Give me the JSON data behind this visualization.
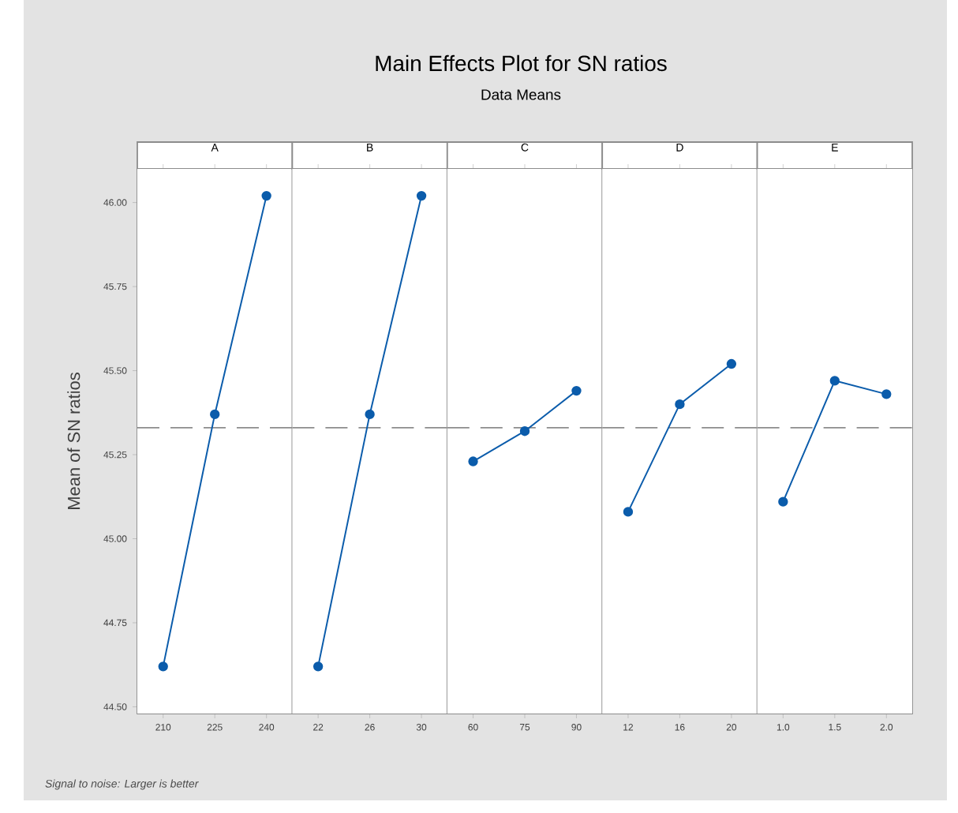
{
  "chart_data": [
    {
      "type": "other",
      "title": "Main Effects Plot for SN ratios",
      "subtitle": "Data Means",
      "annotations": [
        "Signal to noise: Larger is better"
      ]
    },
    {
      "type": "line",
      "title": "A",
      "ylabel": "Mean of SN ratios",
      "categories": [
        "210",
        "225",
        "240"
      ],
      "series": [
        {
          "color": "#0b5cab",
          "values": [
            44.62,
            45.37,
            46.02
          ]
        }
      ],
      "ylim": [
        44.48,
        46.1
      ],
      "yticks": [
        {
          "value": 44.5,
          "label": "44.50"
        },
        {
          "value": 44.75,
          "label": "44.75"
        },
        {
          "value": 45,
          "label": "45.00"
        },
        {
          "value": 45.25,
          "label": "45.25"
        },
        {
          "value": 45.5,
          "label": "45.50"
        },
        {
          "value": 45.75,
          "label": "45.75"
        },
        {
          "value": 46,
          "label": "46.00"
        }
      ],
      "ref_lines": [
        {
          "axis": "y",
          "value": 45.33,
          "color": "#8c8c8c",
          "line_style": "dashed"
        }
      ],
      "marker": "circle",
      "line_style": "solid"
    },
    {
      "type": "line",
      "title": "B",
      "categories": [
        "22",
        "26",
        "30"
      ],
      "series": [
        {
          "color": "#0b5cab",
          "values": [
            44.62,
            45.37,
            46.02
          ]
        }
      ],
      "ylim": [
        44.48,
        46.1
      ],
      "tick_labels": "x",
      "ref_lines": [
        {
          "axis": "y",
          "value": 45.33,
          "color": "#8c8c8c",
          "line_style": "dashed"
        }
      ],
      "marker": "circle",
      "line_style": "solid"
    },
    {
      "type": "line",
      "title": "C",
      "categories": [
        "60",
        "75",
        "90"
      ],
      "series": [
        {
          "color": "#0b5cab",
          "values": [
            45.23,
            45.32,
            45.44
          ]
        }
      ],
      "ylim": [
        44.48,
        46.1
      ],
      "tick_labels": "x",
      "ref_lines": [
        {
          "axis": "y",
          "value": 45.33,
          "color": "#8c8c8c",
          "line_style": "dashed"
        }
      ],
      "marker": "circle",
      "line_style": "solid"
    },
    {
      "type": "line",
      "title": "D",
      "categories": [
        "12",
        "16",
        "20"
      ],
      "series": [
        {
          "color": "#0b5cab",
          "values": [
            45.08,
            45.4,
            45.52
          ]
        }
      ],
      "ylim": [
        44.48,
        46.1
      ],
      "tick_labels": "x",
      "ref_lines": [
        {
          "axis": "y",
          "value": 45.33,
          "color": "#8c8c8c",
          "line_style": "dashed"
        }
      ],
      "marker": "circle",
      "line_style": "solid"
    },
    {
      "type": "line",
      "title": "E",
      "categories": [
        "1.0",
        "1.5",
        "2.0"
      ],
      "series": [
        {
          "color": "#0b5cab",
          "values": [
            45.11,
            45.47,
            45.43
          ]
        }
      ],
      "ylim": [
        44.48,
        46.1
      ],
      "tick_labels": "x",
      "ref_lines": [
        {
          "axis": "y",
          "value": 45.33,
          "color": "#8c8c8c",
          "line_style": "dashed"
        }
      ],
      "marker": "circle",
      "line_style": "solid"
    }
  ]
}
